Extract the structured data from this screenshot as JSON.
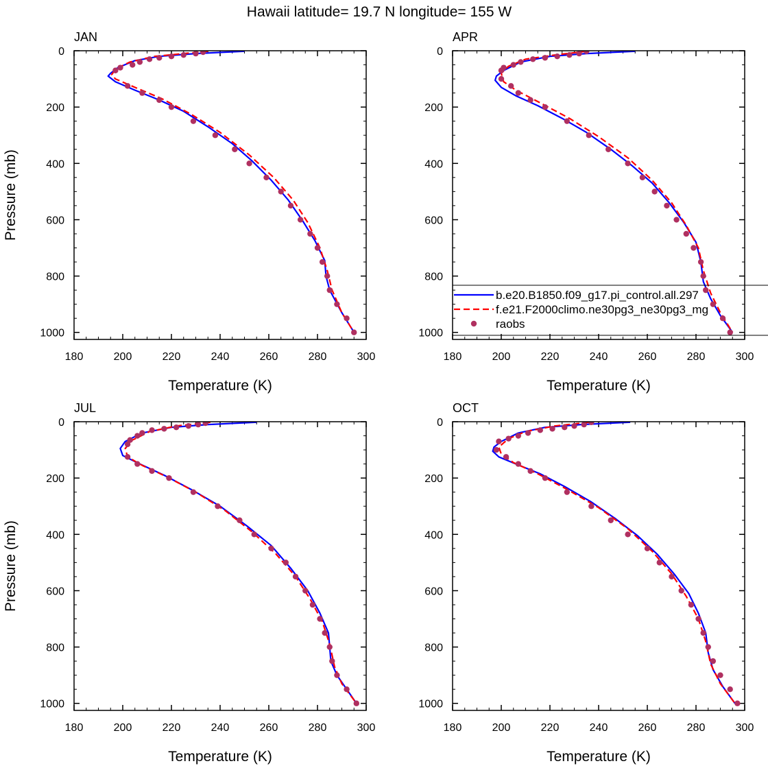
{
  "title": "Hawaii  latitude= 19.7 N longitude= 155 W",
  "legend": {
    "placement": "inside APR panel, lower right",
    "entries": [
      {
        "label": "b.e20.B1850.f09_g17.pi_control.all.297",
        "color": "#0000ff",
        "style": "solid"
      },
      {
        "label": "f.e21.F2000climo.ne30pg3_ne30pg3_mg",
        "color": "#ff0000",
        "style": "dashed"
      },
      {
        "label": "raobs",
        "color": "#b03060",
        "style": "dot"
      }
    ]
  },
  "chart_data": [
    {
      "type": "line",
      "title": "JAN",
      "xlabel": "Temperature (K)",
      "ylabel": "Pressure (mb)",
      "xlim": [
        180,
        300
      ],
      "ylim": [
        0,
        1025
      ],
      "y_reversed": true,
      "x_ticks": [
        180,
        200,
        220,
        240,
        260,
        280,
        300
      ],
      "y_ticks": [
        0,
        200,
        400,
        600,
        800,
        1000
      ],
      "series": [
        {
          "name": "b.e20.B1850.f09_g17.pi_control.all.297",
          "color": "#0000ff",
          "style": "solid",
          "x": [
            250,
            230,
            215,
            205,
            198,
            195,
            194,
            197,
            205,
            215,
            225,
            235,
            245,
            253,
            261,
            268,
            274,
            279,
            283,
            283.5,
            285,
            290,
            295
          ],
          "y": [
            2,
            10,
            20,
            35,
            60,
            80,
            90,
            110,
            140,
            175,
            215,
            270,
            330,
            390,
            460,
            530,
            605,
            675,
            745,
            800,
            850,
            930,
            1000
          ]
        },
        {
          "name": "f.e21.F2000climo.ne30pg3_ne30pg3_mg",
          "color": "#ff0000",
          "style": "dashed",
          "x": [
            235,
            225,
            213,
            203,
            197,
            195.5,
            197,
            205,
            216,
            228,
            240,
            252,
            262,
            270,
            276,
            281,
            284,
            286,
            290,
            295
          ],
          "y": [
            2,
            10,
            20,
            40,
            65,
            85,
            100,
            130,
            170,
            225,
            290,
            370,
            450,
            530,
            610,
            700,
            780,
            850,
            930,
            1000
          ]
        },
        {
          "name": "raobs",
          "color": "#b03060",
          "style": "dot",
          "x": [
            233,
            230,
            225,
            220,
            215,
            211,
            207,
            204,
            199,
            197,
            202,
            208,
            215,
            220,
            229,
            238,
            246,
            252,
            259,
            265,
            269,
            273,
            277,
            280,
            282,
            284,
            285,
            288,
            292,
            295
          ],
          "y": [
            5,
            10,
            15,
            20,
            25,
            30,
            40,
            50,
            60,
            70,
            125,
            150,
            175,
            200,
            250,
            300,
            350,
            400,
            450,
            500,
            550,
            600,
            650,
            700,
            750,
            800,
            850,
            900,
            950,
            1000
          ]
        }
      ]
    },
    {
      "type": "line",
      "title": "APR",
      "xlabel": "Temperature (K)",
      "ylabel": "",
      "xlim": [
        180,
        300
      ],
      "ylim": [
        0,
        1025
      ],
      "y_reversed": true,
      "x_ticks": [
        180,
        200,
        220,
        240,
        260,
        280,
        300
      ],
      "y_ticks": [
        0,
        200,
        400,
        600,
        800,
        1000
      ],
      "series": [
        {
          "name": "b.e20.B1850.f09_g17.pi_control.all.297",
          "color": "#0000ff",
          "style": "solid",
          "x": [
            255,
            235,
            220,
            208,
            201,
            198,
            197.5,
            200,
            206,
            215,
            225,
            235,
            245,
            254,
            262,
            269,
            275,
            280,
            282,
            283,
            286,
            290,
            295
          ],
          "y": [
            2,
            10,
            20,
            40,
            70,
            90,
            105,
            130,
            160,
            195,
            240,
            290,
            350,
            410,
            470,
            540,
            610,
            680,
            750,
            820,
            880,
            940,
            1000
          ]
        },
        {
          "name": "f.e21.F2000climo.ne30pg3_ne30pg3_mg",
          "color": "#ff0000",
          "style": "dashed",
          "x": [
            235,
            222,
            210,
            203,
            200,
            201,
            206,
            216,
            228,
            240,
            252,
            262,
            270,
            276,
            281,
            283,
            286,
            290,
            295
          ],
          "y": [
            2,
            15,
            30,
            55,
            80,
            110,
            140,
            185,
            240,
            305,
            380,
            460,
            540,
            620,
            700,
            780,
            860,
            930,
            1000
          ]
        },
        {
          "name": "raobs",
          "color": "#b03060",
          "style": "dot",
          "x": [
            235,
            232,
            228,
            223,
            218,
            213,
            208,
            205,
            201,
            200,
            200,
            204,
            207,
            212,
            218,
            227,
            236,
            244,
            252,
            258,
            263,
            268,
            272,
            276,
            279,
            282,
            283,
            284,
            287,
            291,
            294
          ],
          "y": [
            2,
            10,
            15,
            20,
            25,
            30,
            40,
            50,
            60,
            70,
            100,
            125,
            150,
            175,
            200,
            250,
            300,
            350,
            400,
            450,
            500,
            550,
            600,
            650,
            700,
            750,
            800,
            850,
            900,
            950,
            1000
          ]
        }
      ]
    },
    {
      "type": "line",
      "title": "JUL",
      "xlabel": "Temperature (K)",
      "ylabel": "Pressure (mb)",
      "xlim": [
        180,
        300
      ],
      "ylim": [
        0,
        1025
      ],
      "y_reversed": true,
      "x_ticks": [
        180,
        200,
        220,
        240,
        260,
        280,
        300
      ],
      "y_ticks": [
        0,
        200,
        400,
        600,
        800,
        1000
      ],
      "series": [
        {
          "name": "b.e20.B1850.f09_g17.pi_control.all.297",
          "color": "#0000ff",
          "style": "solid",
          "x": [
            255,
            235,
            220,
            208,
            201,
            199,
            200,
            207,
            217,
            228,
            240,
            251,
            261,
            269,
            276,
            281,
            284.5,
            285,
            285.5,
            288,
            292,
            296
          ],
          "y": [
            2,
            10,
            20,
            40,
            70,
            95,
            120,
            150,
            190,
            240,
            300,
            370,
            440,
            520,
            600,
            680,
            750,
            800,
            850,
            900,
            950,
            1000
          ]
        },
        {
          "name": "f.e21.F2000climo.ne30pg3_ne30pg3_mg",
          "color": "#ff0000",
          "style": "dashed",
          "x": [
            236,
            222,
            211,
            204,
            201,
            202,
            208,
            218,
            230,
            242,
            253,
            263,
            271,
            277,
            282,
            285,
            287,
            290,
            296
          ],
          "y": [
            2,
            15,
            35,
            65,
            95,
            125,
            155,
            195,
            250,
            315,
            390,
            470,
            550,
            630,
            710,
            790,
            870,
            930,
            1000
          ]
        },
        {
          "name": "raobs",
          "color": "#b03060",
          "style": "dot",
          "x": [
            234,
            231,
            227,
            222,
            217,
            212,
            208,
            206,
            203,
            202,
            202,
            206,
            212,
            219,
            229,
            239,
            248,
            254,
            261,
            267,
            271,
            275,
            278,
            281,
            283,
            285,
            286,
            288,
            292,
            296
          ],
          "y": [
            5,
            10,
            15,
            20,
            25,
            30,
            40,
            50,
            65,
            80,
            125,
            150,
            175,
            200,
            250,
            300,
            350,
            400,
            450,
            500,
            550,
            600,
            650,
            700,
            750,
            800,
            850,
            900,
            950,
            1000
          ]
        }
      ]
    },
    {
      "type": "line",
      "title": "OCT",
      "xlabel": "Temperature (K)",
      "ylabel": "",
      "xlim": [
        180,
        300
      ],
      "ylim": [
        0,
        1025
      ],
      "y_reversed": true,
      "x_ticks": [
        180,
        200,
        220,
        240,
        260,
        280,
        300
      ],
      "y_ticks": [
        0,
        200,
        400,
        600,
        800,
        1000
      ],
      "series": [
        {
          "name": "b.e20.B1850.f09_g17.pi_control.all.297",
          "color": "#0000ff",
          "style": "solid",
          "x": [
            253,
            233,
            218,
            207,
            200,
            197,
            196.5,
            199,
            206,
            216,
            226,
            237,
            247,
            256,
            264,
            271,
            277,
            281,
            284,
            285,
            287,
            291,
            296
          ],
          "y": [
            2,
            10,
            20,
            40,
            70,
            90,
            105,
            125,
            150,
            185,
            230,
            285,
            345,
            405,
            470,
            540,
            610,
            680,
            750,
            820,
            880,
            940,
            1000
          ]
        },
        {
          "name": "f.e21.F2000climo.ne30pg3_ne30pg3_mg",
          "color": "#ff0000",
          "style": "dashed",
          "x": [
            236,
            222,
            210,
            203,
            199,
            200,
            205,
            215,
            227,
            240,
            252,
            262,
            270,
            276,
            281,
            284,
            286,
            290,
            296
          ],
          "y": [
            2,
            15,
            35,
            60,
            90,
            115,
            145,
            185,
            240,
            305,
            380,
            460,
            540,
            620,
            700,
            780,
            860,
            930,
            1000
          ]
        },
        {
          "name": "raobs",
          "color": "#b03060",
          "style": "dot",
          "x": [
            237,
            234,
            230,
            226,
            221,
            216,
            211,
            207,
            203,
            199,
            198,
            202,
            207,
            212,
            218,
            227,
            237,
            245,
            252,
            260,
            265,
            270,
            274,
            278,
            281,
            283,
            285,
            287,
            290,
            294,
            297
          ],
          "y": [
            2,
            10,
            15,
            20,
            25,
            30,
            40,
            50,
            60,
            70,
            100,
            125,
            150,
            175,
            200,
            250,
            300,
            350,
            400,
            450,
            500,
            550,
            600,
            650,
            700,
            750,
            800,
            850,
            900,
            950,
            1000
          ]
        }
      ]
    }
  ]
}
